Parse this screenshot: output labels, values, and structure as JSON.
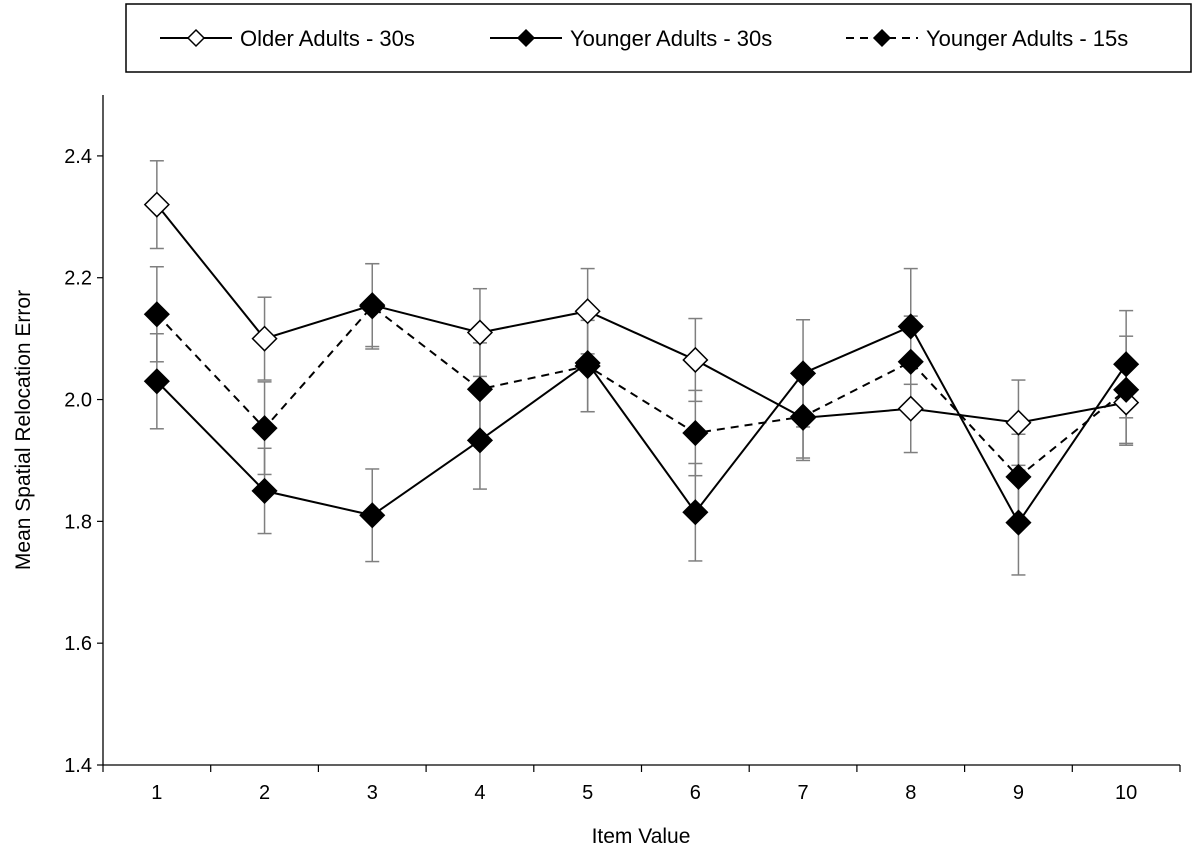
{
  "chart_data": {
    "type": "line",
    "title": "",
    "xlabel": "Item Value",
    "ylabel": "Mean Spatial Relocation Error",
    "categories": [
      "1",
      "2",
      "3",
      "4",
      "5",
      "6",
      "7",
      "8",
      "9",
      "10"
    ],
    "ylim": [
      1.4,
      2.5
    ],
    "yticks": [
      "1.4",
      "1.6",
      "1.8",
      "2.0",
      "2.2",
      "2.4"
    ],
    "grid": false,
    "legend_position": "top",
    "series": [
      {
        "name": "Older Adults - 30s",
        "marker": "open-diamond",
        "line": "solid",
        "values": [
          2.32,
          2.1,
          2.155,
          2.11,
          2.145,
          2.065,
          1.97,
          1.985,
          1.962,
          1.995
        ],
        "errors": [
          0.072,
          0.068,
          0.068,
          0.072,
          0.07,
          0.068,
          0.07,
          0.072,
          0.07,
          0.07
        ]
      },
      {
        "name": "Younger Adults - 30s",
        "marker": "filled-diamond",
        "line": "solid",
        "values": [
          2.03,
          1.85,
          1.81,
          1.933,
          2.06,
          1.815,
          2.043,
          2.12,
          1.798,
          2.058
        ],
        "errors": [
          0.078,
          0.07,
          0.076,
          0.08,
          0.08,
          0.08,
          0.088,
          0.095,
          0.086,
          0.088
        ]
      },
      {
        "name": "Younger Adults - 15s",
        "marker": "filled-diamond",
        "line": "dashed",
        "values": [
          2.14,
          1.953,
          2.153,
          2.017,
          2.055,
          1.945,
          1.972,
          2.062,
          1.873,
          2.016
        ],
        "errors": [
          0.078,
          0.076,
          0.07,
          0.076,
          0.075,
          0.07,
          0.068,
          0.075,
          0.07,
          0.088
        ]
      }
    ],
    "colors": {
      "line": "#000000",
      "error_bar": "#7f7f7f",
      "open_marker_fill": "#ffffff"
    }
  }
}
